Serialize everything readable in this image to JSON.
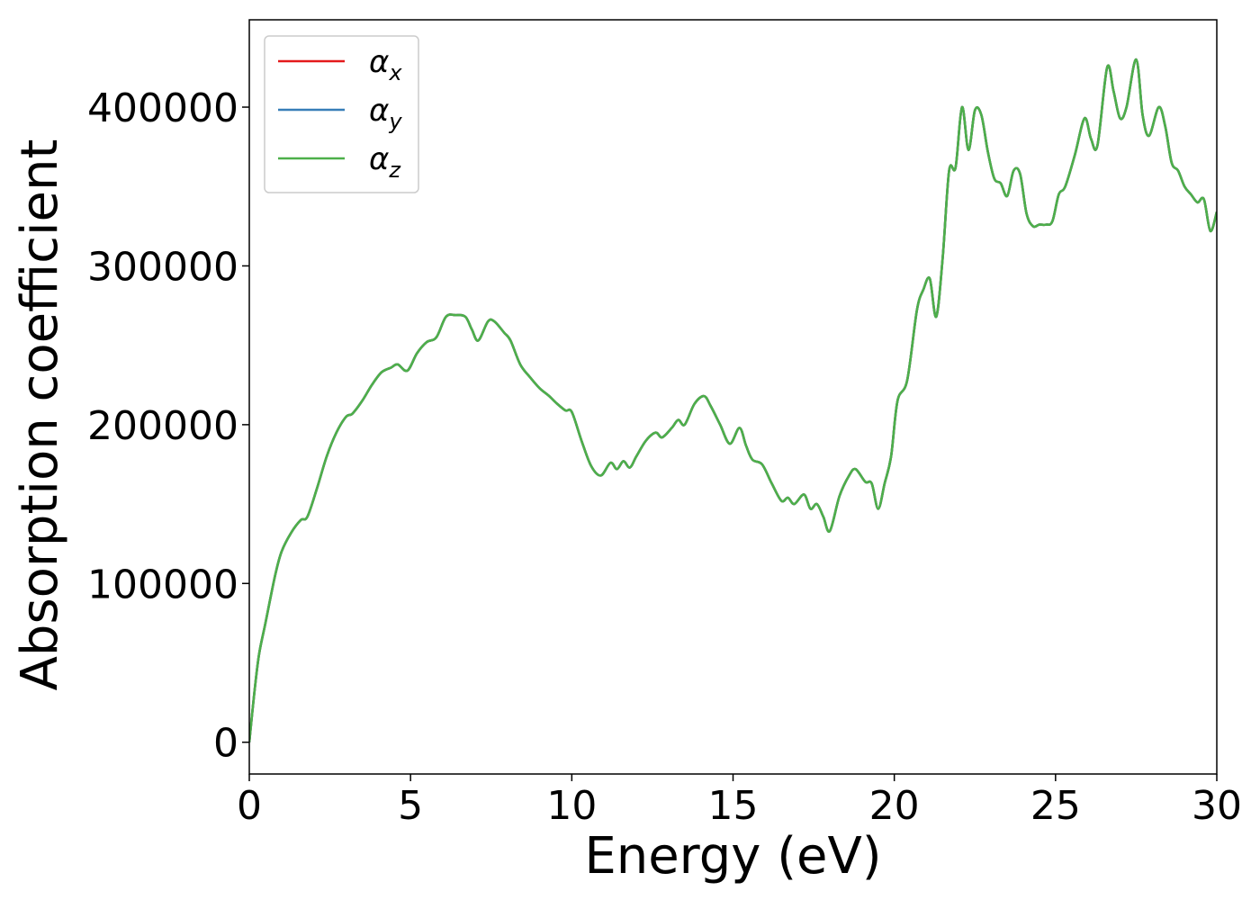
{
  "chart_data": {
    "type": "line",
    "xlabel": "Energy (eV)",
    "ylabel": "Absorption coefficient",
    "xlim": [
      0,
      30
    ],
    "ylim": [
      -20000,
      455000
    ],
    "xticks": [
      0,
      5,
      10,
      15,
      20,
      25,
      30
    ],
    "xtick_labels": [
      "0",
      "5",
      "10",
      "15",
      "20",
      "25",
      "30"
    ],
    "yticks": [
      0,
      100000,
      200000,
      300000,
      400000
    ],
    "ytick_labels": [
      "0",
      "100000",
      "200000",
      "300000",
      "400000"
    ],
    "grid": false,
    "legend_position": "top-left",
    "series": [
      {
        "name": "α_x",
        "legend_symbol": "α",
        "legend_subscript": "x",
        "color": "#e41a1c",
        "x": [
          0,
          0.15,
          0.3,
          0.5,
          0.8,
          1.0,
          1.3,
          1.6,
          1.8,
          2.1,
          2.4,
          2.7,
          3.0,
          3.2,
          3.5,
          3.8,
          4.1,
          4.4,
          4.6,
          4.9,
          5.2,
          5.5,
          5.8,
          6.1,
          6.4,
          6.7,
          6.9,
          7.1,
          7.4,
          7.6,
          7.9,
          8.1,
          8.4,
          8.7,
          9.0,
          9.3,
          9.5,
          9.8,
          10.0,
          10.3,
          10.6,
          10.9,
          11.2,
          11.4,
          11.6,
          11.8,
          12.0,
          12.3,
          12.6,
          12.8,
          13.1,
          13.3,
          13.5,
          13.8,
          14.1,
          14.3,
          14.6,
          14.9,
          15.2,
          15.4,
          15.6,
          15.9,
          16.2,
          16.5,
          16.7,
          16.9,
          17.2,
          17.4,
          17.6,
          17.8,
          18.0,
          18.3,
          18.6,
          18.8,
          19.1,
          19.3,
          19.5,
          19.7,
          19.9,
          20.1,
          20.4,
          20.7,
          20.9,
          21.1,
          21.3,
          21.5,
          21.7,
          21.9,
          22.1,
          22.3,
          22.5,
          22.7,
          22.9,
          23.1,
          23.3,
          23.5,
          23.7,
          23.9,
          24.1,
          24.3,
          24.5,
          24.7,
          24.9,
          25.1,
          25.3,
          25.6,
          25.9,
          26.1,
          26.3,
          26.6,
          26.8,
          27.0,
          27.2,
          27.5,
          27.7,
          27.9,
          28.2,
          28.4,
          28.6,
          28.8,
          29.0,
          29.2,
          29.4,
          29.6,
          29.8,
          30.0
        ],
        "values": [
          0,
          30000,
          55000,
          75000,
          105000,
          120000,
          132000,
          140000,
          142000,
          160000,
          180000,
          195000,
          205000,
          207000,
          215000,
          225000,
          233000,
          236000,
          238000,
          234000,
          245000,
          252000,
          255000,
          268000,
          269000,
          268000,
          260000,
          253000,
          265000,
          265000,
          258000,
          253000,
          238000,
          230000,
          223000,
          218000,
          214000,
          209000,
          208000,
          190000,
          174000,
          168000,
          176000,
          172000,
          177000,
          173000,
          180000,
          190000,
          195000,
          192000,
          198000,
          203000,
          200000,
          213000,
          218000,
          212000,
          200000,
          188000,
          198000,
          187000,
          178000,
          175000,
          163000,
          152000,
          154000,
          150000,
          156000,
          147000,
          150000,
          142000,
          133000,
          155000,
          168000,
          172000,
          164000,
          163000,
          147000,
          163000,
          180000,
          215000,
          228000,
          272000,
          285000,
          292000,
          268000,
          305000,
          360000,
          362000,
          400000,
          373000,
          398000,
          395000,
          372000,
          355000,
          352000,
          344000,
          360000,
          358000,
          333000,
          325000,
          326000,
          326000,
          328000,
          345000,
          350000,
          370000,
          393000,
          380000,
          376000,
          425000,
          410000,
          393000,
          400000,
          430000,
          395000,
          382000,
          400000,
          388000,
          365000,
          360000,
          350000,
          345000,
          340000,
          342000,
          322000,
          334000
        ]
      },
      {
        "name": "α_y",
        "legend_symbol": "α",
        "legend_subscript": "y",
        "color": "#377eb8",
        "x": [
          0,
          0.15,
          0.3,
          0.5,
          0.8,
          1.0,
          1.3,
          1.6,
          1.8,
          2.1,
          2.4,
          2.7,
          3.0,
          3.2,
          3.5,
          3.8,
          4.1,
          4.4,
          4.6,
          4.9,
          5.2,
          5.5,
          5.8,
          6.1,
          6.4,
          6.7,
          6.9,
          7.1,
          7.4,
          7.6,
          7.9,
          8.1,
          8.4,
          8.7,
          9.0,
          9.3,
          9.5,
          9.8,
          10.0,
          10.3,
          10.6,
          10.9,
          11.2,
          11.4,
          11.6,
          11.8,
          12.0,
          12.3,
          12.6,
          12.8,
          13.1,
          13.3,
          13.5,
          13.8,
          14.1,
          14.3,
          14.6,
          14.9,
          15.2,
          15.4,
          15.6,
          15.9,
          16.2,
          16.5,
          16.7,
          16.9,
          17.2,
          17.4,
          17.6,
          17.8,
          18.0,
          18.3,
          18.6,
          18.8,
          19.1,
          19.3,
          19.5,
          19.7,
          19.9,
          20.1,
          20.4,
          20.7,
          20.9,
          21.1,
          21.3,
          21.5,
          21.7,
          21.9,
          22.1,
          22.3,
          22.5,
          22.7,
          22.9,
          23.1,
          23.3,
          23.5,
          23.7,
          23.9,
          24.1,
          24.3,
          24.5,
          24.7,
          24.9,
          25.1,
          25.3,
          25.6,
          25.9,
          26.1,
          26.3,
          26.6,
          26.8,
          27.0,
          27.2,
          27.5,
          27.7,
          27.9,
          28.2,
          28.4,
          28.6,
          28.8,
          29.0,
          29.2,
          29.4,
          29.6,
          29.8,
          30.0
        ],
        "values": [
          0,
          30000,
          55000,
          75000,
          105000,
          120000,
          132000,
          140000,
          142000,
          160000,
          180000,
          195000,
          205000,
          207000,
          215000,
          225000,
          233000,
          236000,
          238000,
          234000,
          245000,
          252000,
          255000,
          268000,
          269000,
          268000,
          260000,
          253000,
          265000,
          265000,
          258000,
          253000,
          238000,
          230000,
          223000,
          218000,
          214000,
          209000,
          208000,
          190000,
          174000,
          168000,
          176000,
          172000,
          177000,
          173000,
          180000,
          190000,
          195000,
          192000,
          198000,
          203000,
          200000,
          213000,
          218000,
          212000,
          200000,
          188000,
          198000,
          187000,
          178000,
          175000,
          163000,
          152000,
          154000,
          150000,
          156000,
          147000,
          150000,
          142000,
          133000,
          155000,
          168000,
          172000,
          164000,
          163000,
          147000,
          163000,
          180000,
          215000,
          228000,
          272000,
          285000,
          292000,
          268000,
          305000,
          360000,
          362000,
          400000,
          373000,
          398000,
          395000,
          372000,
          355000,
          352000,
          344000,
          360000,
          358000,
          333000,
          325000,
          326000,
          326000,
          328000,
          345000,
          350000,
          370000,
          393000,
          380000,
          376000,
          425000,
          410000,
          393000,
          400000,
          430000,
          395000,
          382000,
          400000,
          388000,
          365000,
          360000,
          350000,
          345000,
          340000,
          342000,
          322000,
          334000
        ]
      },
      {
        "name": "α_z",
        "legend_symbol": "α",
        "legend_subscript": "z",
        "color": "#4daf4a",
        "x": [
          0,
          0.15,
          0.3,
          0.5,
          0.8,
          1.0,
          1.3,
          1.6,
          1.8,
          2.1,
          2.4,
          2.7,
          3.0,
          3.2,
          3.5,
          3.8,
          4.1,
          4.4,
          4.6,
          4.9,
          5.2,
          5.5,
          5.8,
          6.1,
          6.4,
          6.7,
          6.9,
          7.1,
          7.4,
          7.6,
          7.9,
          8.1,
          8.4,
          8.7,
          9.0,
          9.3,
          9.5,
          9.8,
          10.0,
          10.3,
          10.6,
          10.9,
          11.2,
          11.4,
          11.6,
          11.8,
          12.0,
          12.3,
          12.6,
          12.8,
          13.1,
          13.3,
          13.5,
          13.8,
          14.1,
          14.3,
          14.6,
          14.9,
          15.2,
          15.4,
          15.6,
          15.9,
          16.2,
          16.5,
          16.7,
          16.9,
          17.2,
          17.4,
          17.6,
          17.8,
          18.0,
          18.3,
          18.6,
          18.8,
          19.1,
          19.3,
          19.5,
          19.7,
          19.9,
          20.1,
          20.4,
          20.7,
          20.9,
          21.1,
          21.3,
          21.5,
          21.7,
          21.9,
          22.1,
          22.3,
          22.5,
          22.7,
          22.9,
          23.1,
          23.3,
          23.5,
          23.7,
          23.9,
          24.1,
          24.3,
          24.5,
          24.7,
          24.9,
          25.1,
          25.3,
          25.6,
          25.9,
          26.1,
          26.3,
          26.6,
          26.8,
          27.0,
          27.2,
          27.5,
          27.7,
          27.9,
          28.2,
          28.4,
          28.6,
          28.8,
          29.0,
          29.2,
          29.4,
          29.6,
          29.8,
          30.0
        ],
        "values": [
          0,
          30000,
          55000,
          75000,
          105000,
          120000,
          132000,
          140000,
          142000,
          160000,
          180000,
          195000,
          205000,
          207000,
          215000,
          225000,
          233000,
          236000,
          238000,
          234000,
          245000,
          252000,
          255000,
          268000,
          269000,
          268000,
          260000,
          253000,
          265000,
          265000,
          258000,
          253000,
          238000,
          230000,
          223000,
          218000,
          214000,
          209000,
          208000,
          190000,
          174000,
          168000,
          176000,
          172000,
          177000,
          173000,
          180000,
          190000,
          195000,
          192000,
          198000,
          203000,
          200000,
          213000,
          218000,
          212000,
          200000,
          188000,
          198000,
          187000,
          178000,
          175000,
          163000,
          152000,
          154000,
          150000,
          156000,
          147000,
          150000,
          142000,
          133000,
          155000,
          168000,
          172000,
          164000,
          163000,
          147000,
          163000,
          180000,
          215000,
          228000,
          272000,
          285000,
          292000,
          268000,
          305000,
          360000,
          362000,
          400000,
          373000,
          398000,
          395000,
          372000,
          355000,
          352000,
          344000,
          360000,
          358000,
          333000,
          325000,
          326000,
          326000,
          328000,
          345000,
          350000,
          370000,
          393000,
          380000,
          376000,
          425000,
          410000,
          393000,
          400000,
          430000,
          395000,
          382000,
          400000,
          388000,
          365000,
          360000,
          350000,
          345000,
          340000,
          342000,
          322000,
          334000
        ]
      }
    ]
  }
}
